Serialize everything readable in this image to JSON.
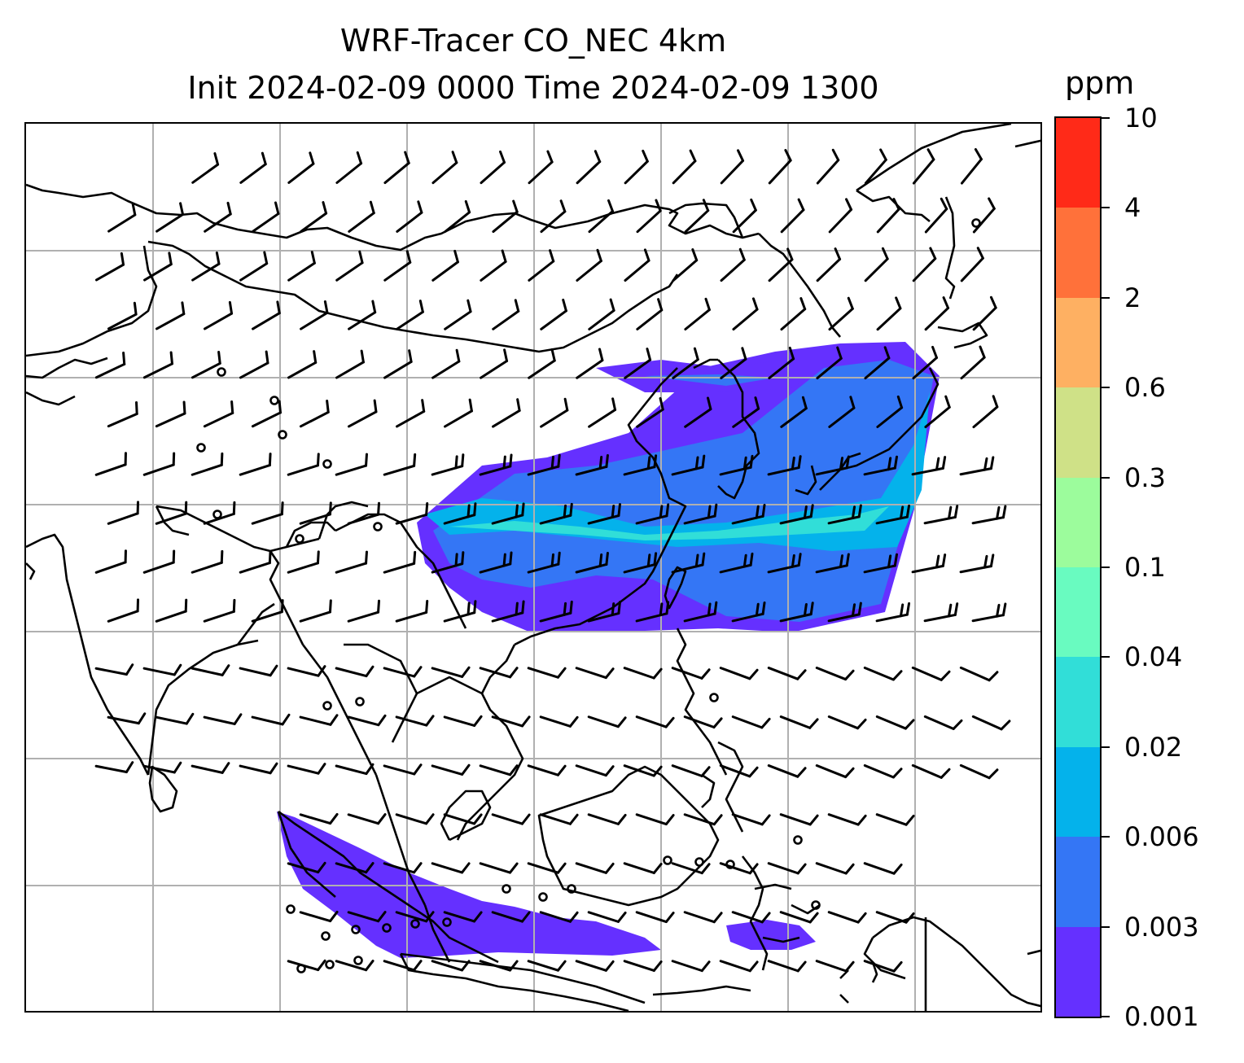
{
  "title": {
    "line1": "WRF-Tracer CO_NEC 4km",
    "line2": "Init 2024-02-09 0000 Time 2024-02-09 1300"
  },
  "colorbar": {
    "unit": "ppm",
    "tick_labels": [
      "0.001",
      "0.003",
      "0.006",
      "0.02",
      "0.04",
      "0.1",
      "0.3",
      "0.6",
      "2",
      "4",
      "10"
    ],
    "level_colors": [
      "#6530ff",
      "#3476f5",
      "#04b2eb",
      "#31ded8",
      "#69fbc0",
      "#9cfc9c",
      "#cfe187",
      "#feb062",
      "#ff713a",
      "#ff2a18"
    ]
  },
  "map": {
    "graticule_color": "#b0b0b0",
    "coastline_color": "#000000",
    "wind_barb_color": "#000000",
    "features": [
      "coastlines",
      "country borders",
      "lat-lon gridlines",
      "wind barbs",
      "calm-wind circles",
      "CO tracer shading"
    ]
  }
}
